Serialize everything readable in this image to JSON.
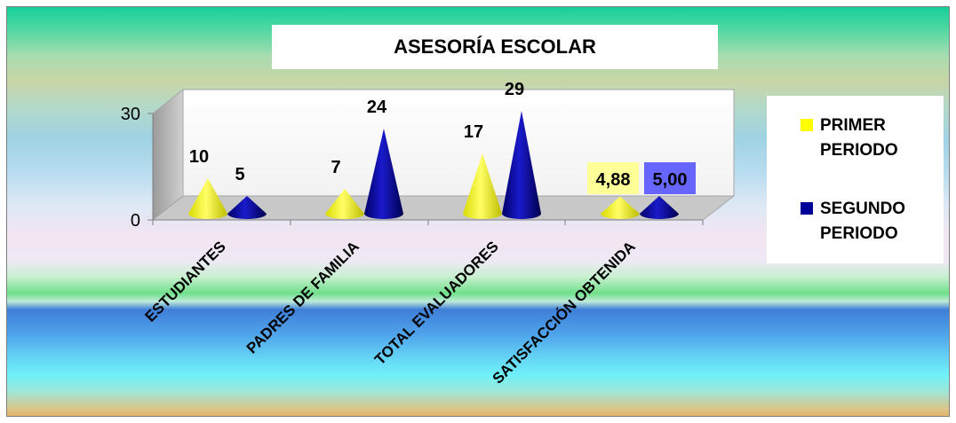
{
  "chart_data": {
    "type": "bar",
    "subtype": "3d-cone",
    "title": "ASESORÍA ESCOLAR",
    "categories": [
      "ESTUDIANTES",
      "PADRES DE FAMILIA",
      "TOTAL EVALUADORES",
      "SATISFACCIÓN OBTENIDA"
    ],
    "series": [
      {
        "name": "PRIMER PERIODO",
        "color": "#ffff00",
        "values": [
          10,
          7,
          17,
          4.88
        ],
        "labels": [
          "10",
          "7",
          "17",
          "4,88"
        ]
      },
      {
        "name": "SEGUNDO PERIODO",
        "color": "#000099",
        "values": [
          5,
          24,
          29,
          5.0
        ],
        "labels": [
          "5",
          "24",
          "29",
          "5,00"
        ]
      }
    ],
    "ylim": [
      0,
      30
    ],
    "yticks": [
      "0",
      "30"
    ],
    "legend": "right",
    "highlighted_labels": {
      "text_color": "#ff0000",
      "primer_bg": "#ffff99",
      "segundo_bg": "#6666ff"
    }
  }
}
